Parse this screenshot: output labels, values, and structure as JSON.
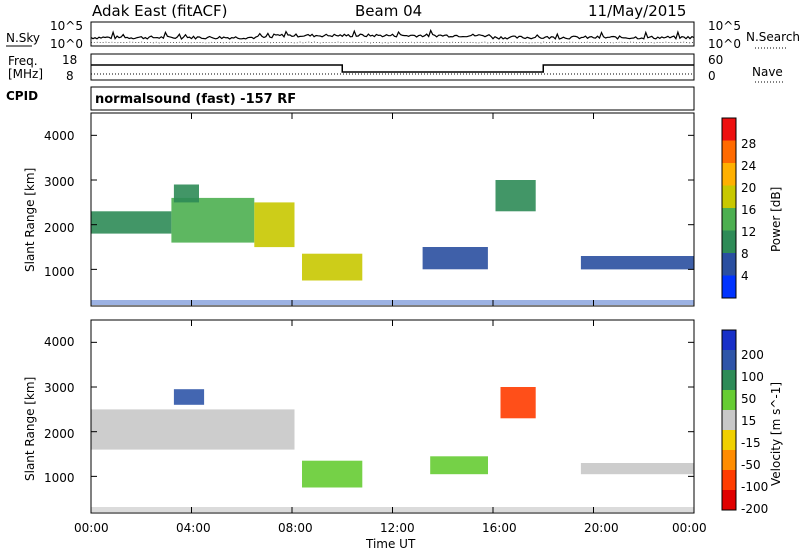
{
  "header": {
    "station": "Adak East (fitACF)",
    "beam": "Beam 04",
    "date": "11/May/2015"
  },
  "top_panels": {
    "nsky_label": "N.Sky",
    "nsky_ticks": [
      "10^5",
      "10^0"
    ],
    "nsearch_label": "N.Search",
    "nsearch_ticks": [
      "10^5",
      "10^0"
    ],
    "freq_label_line1": "Freq.",
    "freq_label_line2": "[MHz]",
    "freq_ticks": [
      "18",
      "8"
    ],
    "nave_label": "Nave",
    "nave_ticks": [
      "60",
      "0"
    ],
    "cpid_label": "CPID",
    "cpid_text": "normalsound (fast) -157 RF"
  },
  "chart_data": [
    {
      "type": "heatmap",
      "panel": "power",
      "ylabel": "Slant Range [km]",
      "yticks": [
        "4000",
        "3000",
        "2000",
        "1000"
      ],
      "ylim": [
        180,
        4500
      ],
      "xlabel": "",
      "xticks": [
        "00:00",
        "04:00",
        "08:00",
        "12:00",
        "16:00",
        "20:00",
        "00:00"
      ],
      "colorbar_label": "Power [dB]",
      "colorbar_ticks": [
        "28",
        "24",
        "20",
        "16",
        "12",
        "8",
        "4"
      ],
      "colorbar_colors": [
        "#0033ff",
        "#2a4fa0",
        "#2e8b57",
        "#4caf50",
        "#c8c800",
        "#ffb000",
        "#ff6a00",
        "#ee1010"
      ],
      "regions": [
        {
          "t0": 0.0,
          "t1": 3.2,
          "r0": 1800,
          "r1": 2300,
          "v": 11
        },
        {
          "t0": 3.2,
          "t1": 6.5,
          "r0": 1600,
          "r1": 2600,
          "v": 14
        },
        {
          "t0": 6.5,
          "t1": 8.1,
          "r0": 1500,
          "r1": 2500,
          "v": 16
        },
        {
          "t0": 3.3,
          "t1": 4.3,
          "r0": 2500,
          "r1": 2900,
          "v": 9
        },
        {
          "t0": 8.4,
          "t1": 10.8,
          "r0": 750,
          "r1": 1350,
          "v": 17
        },
        {
          "t0": 13.2,
          "t1": 15.8,
          "r0": 1000,
          "r1": 1500,
          "v": 7
        },
        {
          "t0": 16.1,
          "t1": 17.7,
          "r0": 2300,
          "r1": 3000,
          "v": 9
        },
        {
          "t0": 19.5,
          "t1": 24.0,
          "r0": 1000,
          "r1": 1300,
          "v": 6
        }
      ]
    },
    {
      "type": "heatmap",
      "panel": "velocity",
      "ylabel": "Slant Range [km]",
      "yticks": [
        "4000",
        "3000",
        "2000",
        "1000"
      ],
      "ylim": [
        180,
        4500
      ],
      "xlabel": "Time UT",
      "xticks": [
        "00:00",
        "04:00",
        "08:00",
        "12:00",
        "16:00",
        "20:00",
        "00:00"
      ],
      "colorbar_label": "Velocity [m s^-1]",
      "colorbar_ticks": [
        "200",
        "100",
        "50",
        "15",
        "-15",
        "-50",
        "-100",
        "-200"
      ],
      "colorbar_colors": [
        "#1830c8",
        "#2f55a8",
        "#2e8b57",
        "#66cc33",
        "#c8c8c8",
        "#f0d000",
        "#ff8c00",
        "#ff3c00",
        "#e00000"
      ],
      "regions": [
        {
          "t0": 0.0,
          "t1": 8.1,
          "r0": 1600,
          "r1": 2500,
          "v": 0
        },
        {
          "t0": 3.3,
          "t1": 4.5,
          "r0": 2600,
          "r1": 2950,
          "v": 180
        },
        {
          "t0": 8.4,
          "t1": 10.8,
          "r0": 750,
          "r1": 1350,
          "v": 35
        },
        {
          "t0": 13.5,
          "t1": 15.8,
          "r0": 1050,
          "r1": 1450,
          "v": 30
        },
        {
          "t0": 16.3,
          "t1": 17.7,
          "r0": 2300,
          "r1": 3000,
          "v": -190
        },
        {
          "t0": 19.5,
          "t1": 24.0,
          "r0": 1050,
          "r1": 1300,
          "v": 0
        }
      ]
    }
  ]
}
